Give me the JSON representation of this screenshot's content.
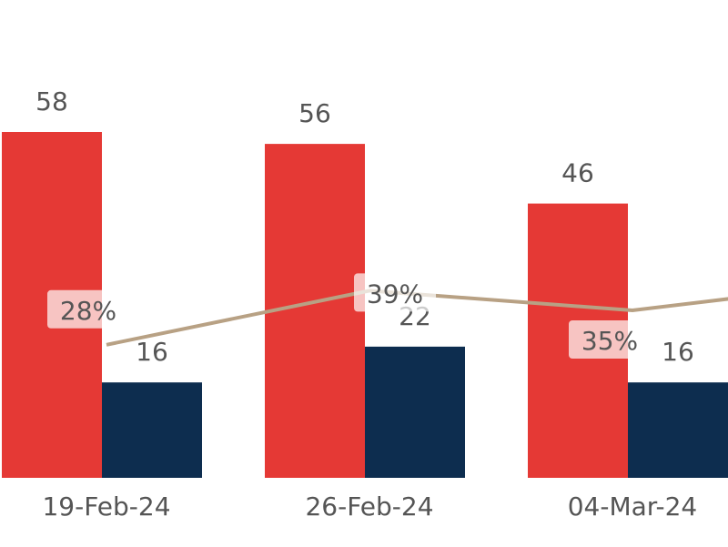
{
  "chart_data": {
    "type": "bar",
    "categories": [
      "19-Feb-24",
      "26-Feb-24",
      "04-Mar-24"
    ],
    "series": [
      {
        "values": [
          58,
          56,
          46
        ],
        "color": "#e53935"
      },
      {
        "values": [
          16,
          22,
          16
        ],
        "color": "#0d2d4f"
      }
    ],
    "line": {
      "type": "line",
      "values": [
        28,
        39,
        35
      ],
      "labels": [
        "28%",
        "39%",
        "35%"
      ],
      "color": "#b8a184"
    },
    "grid": false,
    "legend": "none"
  }
}
